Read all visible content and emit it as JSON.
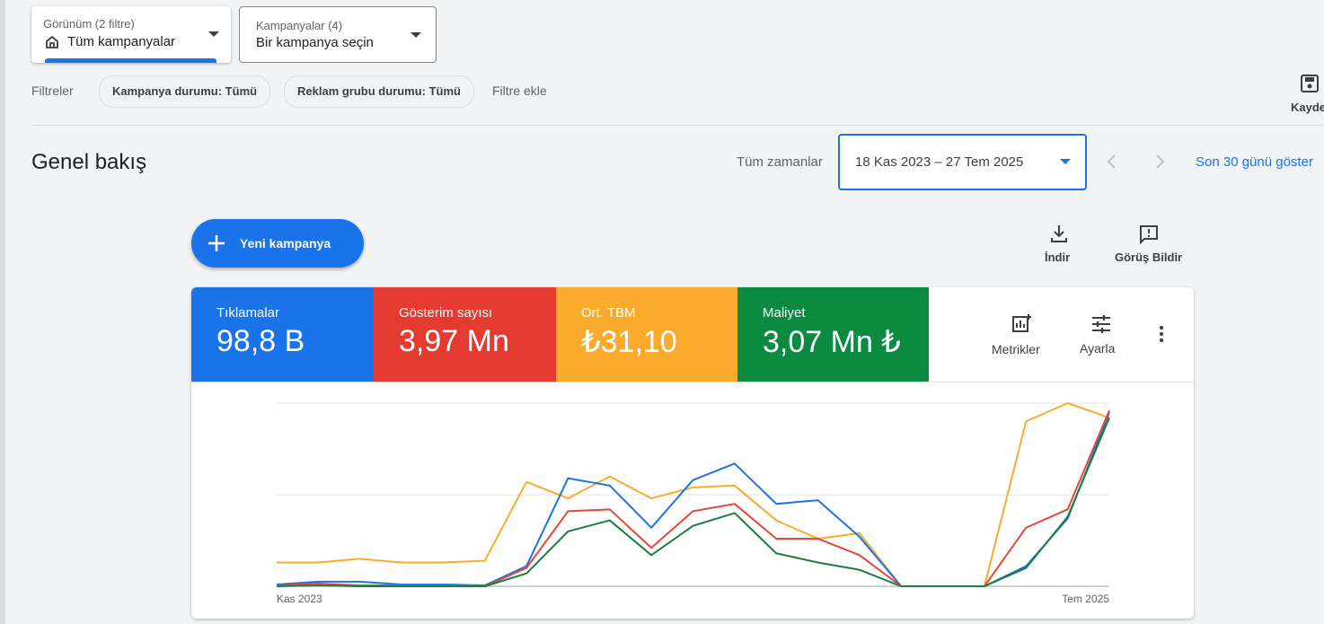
{
  "toolbar": {
    "view": {
      "label": "Görünüm (2 filtre)",
      "value": "Tüm kampanyalar"
    },
    "campaigns": {
      "label": "Kampanyalar (4)",
      "value": "Bir kampanya seçin"
    }
  },
  "filters": {
    "label": "Filtreler",
    "chips": [
      "Kampanya durumu: Tümü",
      "Reklam grubu durumu: Tümü"
    ],
    "add": "Filtre ekle",
    "save": "Kayde"
  },
  "header": {
    "title": "Genel bakış",
    "range_label": "Tüm zamanlar",
    "date_range": "18 Kas 2023 – 27 Tem 2025",
    "last30": "Son 30 günü göster"
  },
  "actions": {
    "new_campaign": "Yeni kampanya",
    "download": "İndir",
    "feedback": "Görüş Bildir"
  },
  "scorecards": [
    {
      "name": "Tıklamalar",
      "value": "98,8 B"
    },
    {
      "name": "Gösterim sayısı",
      "value": "3,97 Mn"
    },
    {
      "name": "Ort. TBM",
      "value": "₺31,10"
    },
    {
      "name": "Maliyet",
      "value": "3,07 Mn ₺"
    }
  ],
  "card_tools": {
    "metrics": "Metrikler",
    "adjust": "Ayarla"
  },
  "chart_data": {
    "type": "line",
    "categories": [
      "Kas 2023",
      null,
      null,
      null,
      null,
      null,
      null,
      null,
      null,
      null,
      null,
      null,
      null,
      null,
      null,
      null,
      null,
      null,
      null,
      null,
      "Tem 2025"
    ],
    "ylim": [
      0,
      100
    ],
    "yticks": [
      0,
      50,
      100
    ],
    "grid": true,
    "series": [
      {
        "name": "Ort. TBM",
        "color": "#f9ab2c",
        "values": [
          13,
          13,
          15,
          13,
          13,
          14,
          57,
          48,
          60,
          48,
          54,
          55,
          36,
          26,
          29,
          0,
          0,
          0,
          90,
          100,
          92
        ]
      },
      {
        "name": "Tıklamalar",
        "color": "#1a73e8",
        "values": [
          1,
          2.5,
          2.5,
          1,
          1,
          0.5,
          11,
          59,
          55,
          32,
          58,
          67,
          45,
          47,
          27,
          0,
          0,
          0,
          11,
          37,
          95
        ]
      },
      {
        "name": "Gösterim sayısı",
        "color": "#e8453c",
        "values": [
          0.5,
          1.5,
          0.5,
          0.5,
          0.5,
          0,
          10,
          41,
          42,
          21,
          41,
          45,
          26,
          26,
          17,
          0,
          0,
          0,
          32,
          42,
          96
        ]
      },
      {
        "name": "Maliyet",
        "color": "#188038",
        "values": [
          0,
          0.5,
          0,
          0,
          0,
          0,
          7,
          30,
          36,
          17,
          33,
          40,
          18,
          13,
          9,
          0,
          0,
          0,
          10,
          38,
          92
        ]
      }
    ]
  }
}
